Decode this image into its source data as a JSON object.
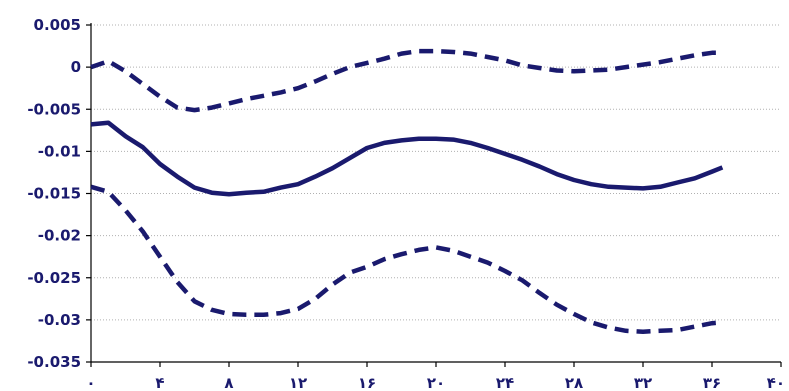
{
  "chart_data": {
    "type": "line",
    "title": "",
    "xlabel": "",
    "ylabel": "",
    "xlim": [
      0,
      40
    ],
    "ylim": [
      -0.035,
      0.005
    ],
    "grid": true,
    "legend": "none",
    "x_tick_labels": [
      "۰",
      "۴",
      "۸",
      "۱۲",
      "۱۶",
      "۲۰",
      "۲۴",
      "۲۸",
      "۳۲",
      "۳۶",
      "۴۰"
    ],
    "x_tick_values": [
      0,
      4,
      8,
      12,
      16,
      20,
      24,
      28,
      32,
      36,
      40
    ],
    "y_tick_labels": [
      "0.005",
      "0",
      "-0.005",
      "-0.01",
      "-0.015",
      "-0.02",
      "-0.025",
      "-0.03",
      "-0.035"
    ],
    "y_tick_values": [
      0.005,
      0,
      -0.005,
      -0.01,
      -0.015,
      -0.02,
      -0.025,
      -0.03,
      -0.035
    ],
    "colors": {
      "series": "#1a1a6e",
      "text": "#1a1a6e"
    },
    "series": [
      {
        "style": "dashed",
        "points": [
          [
            0,
            0
          ],
          [
            1,
            0.0007
          ],
          [
            2,
            -0.0005
          ],
          [
            3,
            -0.002
          ],
          [
            4,
            -0.0035
          ],
          [
            5,
            -0.0048
          ],
          [
            6,
            -0.0051
          ],
          [
            7,
            -0.0048
          ],
          [
            8,
            -0.0043
          ],
          [
            9,
            -0.0038
          ],
          [
            10,
            -0.0034
          ],
          [
            11,
            -0.003
          ],
          [
            12,
            -0.0025
          ],
          [
            13,
            -0.0017
          ],
          [
            14,
            -0.0008
          ],
          [
            15,
            0
          ],
          [
            16,
            0.0005
          ],
          [
            17,
            0.001
          ],
          [
            18,
            0.0016
          ],
          [
            19,
            0.0019
          ],
          [
            20,
            0.0019
          ],
          [
            21,
            0.0018
          ],
          [
            22,
            0.0016
          ],
          [
            23,
            0.0012
          ],
          [
            24,
            0.0008
          ],
          [
            25,
            0.0002
          ],
          [
            26,
            -0.0001
          ],
          [
            27,
            -0.0004
          ],
          [
            28,
            -0.0005
          ],
          [
            29,
            -0.0004
          ],
          [
            30,
            -0.0003
          ],
          [
            31,
            0
          ],
          [
            32,
            0.0003
          ],
          [
            33,
            0.0006
          ],
          [
            34,
            0.001
          ],
          [
            35,
            0.0014
          ],
          [
            36,
            0.0017
          ],
          [
            36.6,
            0.0017
          ]
        ]
      },
      {
        "style": "solid",
        "points": [
          [
            0,
            -0.0068
          ],
          [
            1,
            -0.0066
          ],
          [
            2,
            -0.0082
          ],
          [
            3,
            -0.0095
          ],
          [
            4,
            -0.0115
          ],
          [
            5,
            -0.013
          ],
          [
            6,
            -0.0143
          ],
          [
            7,
            -0.0149
          ],
          [
            8,
            -0.0151
          ],
          [
            9,
            -0.0149
          ],
          [
            10,
            -0.0148
          ],
          [
            11,
            -0.0143
          ],
          [
            12,
            -0.0139
          ],
          [
            13,
            -0.013
          ],
          [
            14,
            -0.012
          ],
          [
            15,
            -0.0108
          ],
          [
            16,
            -0.0096
          ],
          [
            17,
            -0.009
          ],
          [
            18,
            -0.0087
          ],
          [
            19,
            -0.0085
          ],
          [
            20,
            -0.0085
          ],
          [
            21,
            -0.0086
          ],
          [
            22,
            -0.009
          ],
          [
            23,
            -0.0096
          ],
          [
            24,
            -0.0103
          ],
          [
            25,
            -0.011
          ],
          [
            26,
            -0.0118
          ],
          [
            27,
            -0.0127
          ],
          [
            28,
            -0.0134
          ],
          [
            29,
            -0.0139
          ],
          [
            30,
            -0.0142
          ],
          [
            31,
            -0.0143
          ],
          [
            32,
            -0.0144
          ],
          [
            33,
            -0.0142
          ],
          [
            34,
            -0.0137
          ],
          [
            35,
            -0.0132
          ],
          [
            36,
            -0.0124
          ],
          [
            36.6,
            -0.0119
          ]
        ]
      },
      {
        "style": "dashed",
        "points": [
          [
            0,
            -0.0142
          ],
          [
            1,
            -0.0148
          ],
          [
            2,
            -0.017
          ],
          [
            3,
            -0.0195
          ],
          [
            4,
            -0.0225
          ],
          [
            5,
            -0.0255
          ],
          [
            6,
            -0.0278
          ],
          [
            7,
            -0.0288
          ],
          [
            8,
            -0.0293
          ],
          [
            9,
            -0.0294
          ],
          [
            10,
            -0.0294
          ],
          [
            11,
            -0.0292
          ],
          [
            12,
            -0.0287
          ],
          [
            13,
            -0.0275
          ],
          [
            14,
            -0.0258
          ],
          [
            15,
            -0.0244
          ],
          [
            16,
            -0.0237
          ],
          [
            17,
            -0.0228
          ],
          [
            18,
            -0.0222
          ],
          [
            19,
            -0.0217
          ],
          [
            20,
            -0.0214
          ],
          [
            21,
            -0.0218
          ],
          [
            22,
            -0.0225
          ],
          [
            23,
            -0.0232
          ],
          [
            24,
            -0.0242
          ],
          [
            25,
            -0.0253
          ],
          [
            26,
            -0.0268
          ],
          [
            27,
            -0.0282
          ],
          [
            28,
            -0.0293
          ],
          [
            29,
            -0.0303
          ],
          [
            30,
            -0.0309
          ],
          [
            31,
            -0.0313
          ],
          [
            32,
            -0.0314
          ],
          [
            33,
            -0.0313
          ],
          [
            34,
            -0.0312
          ],
          [
            35,
            -0.0308
          ],
          [
            36,
            -0.0304
          ],
          [
            36.6,
            -0.0303
          ]
        ]
      }
    ]
  }
}
